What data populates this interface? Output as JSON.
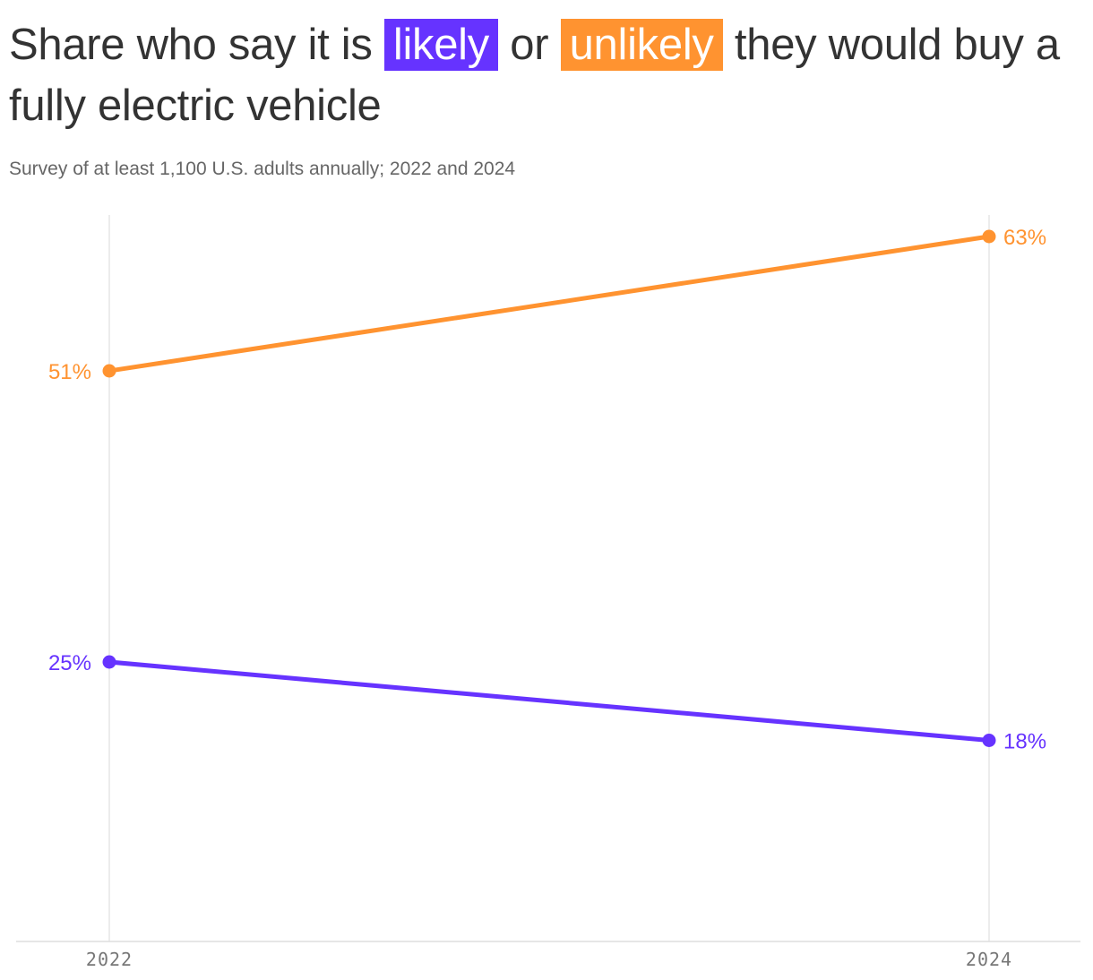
{
  "header": {
    "title_before": "Share who say it is ",
    "title_likely": "likely",
    "title_or": " or ",
    "title_unlikely": "unlikely",
    "title_after": " they would buy a fully electric vehicle",
    "subtitle": "Survey of at least 1,100 U.S. adults annually; 2022 and 2024"
  },
  "colors": {
    "likely": "#6633ff",
    "unlikely": "#ff9330",
    "grid": "#e5e5e5",
    "axis": "#dddddd"
  },
  "chart_data": {
    "type": "line",
    "x": [
      "2022",
      "2024"
    ],
    "ylim": [
      0,
      65
    ],
    "grid": "vertical",
    "series": [
      {
        "name": "unlikely",
        "color": "#ff9330",
        "values": [
          51,
          63
        ],
        "labels": [
          "51%",
          "63%"
        ]
      },
      {
        "name": "likely",
        "color": "#6633ff",
        "values": [
          25,
          18
        ],
        "labels": [
          "25%",
          "18%"
        ]
      }
    ]
  }
}
